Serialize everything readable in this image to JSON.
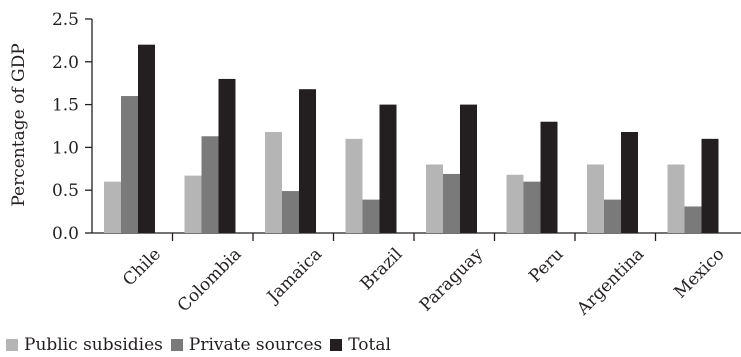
{
  "chart_data": {
    "type": "bar",
    "ylabel": "Percentage of GDP",
    "ylim": [
      0,
      2.5
    ],
    "yticks": [
      "0.0",
      "0.5",
      "1.0",
      "1.5",
      "2.0",
      "2.5"
    ],
    "categories": [
      "Chile",
      "Colombia",
      "Jamaica",
      "Brazil",
      "Paraguay",
      "Peru",
      "Argentina",
      "Mexico"
    ],
    "series": [
      {
        "name": "Public subsidies",
        "color": "#b5b5b5",
        "values": [
          0.6,
          0.67,
          1.18,
          1.1,
          0.8,
          0.68,
          0.8,
          0.8
        ]
      },
      {
        "name": "Private sources",
        "color": "#7a7a7a",
        "values": [
          1.6,
          1.13,
          0.49,
          0.39,
          0.69,
          0.6,
          0.39,
          0.31
        ]
      },
      {
        "name": "Total",
        "color": "#231f20",
        "values": [
          2.2,
          1.8,
          1.68,
          1.5,
          1.5,
          1.3,
          1.18,
          1.1
        ]
      }
    ],
    "legend_position": "bottom-left",
    "grid": false
  }
}
